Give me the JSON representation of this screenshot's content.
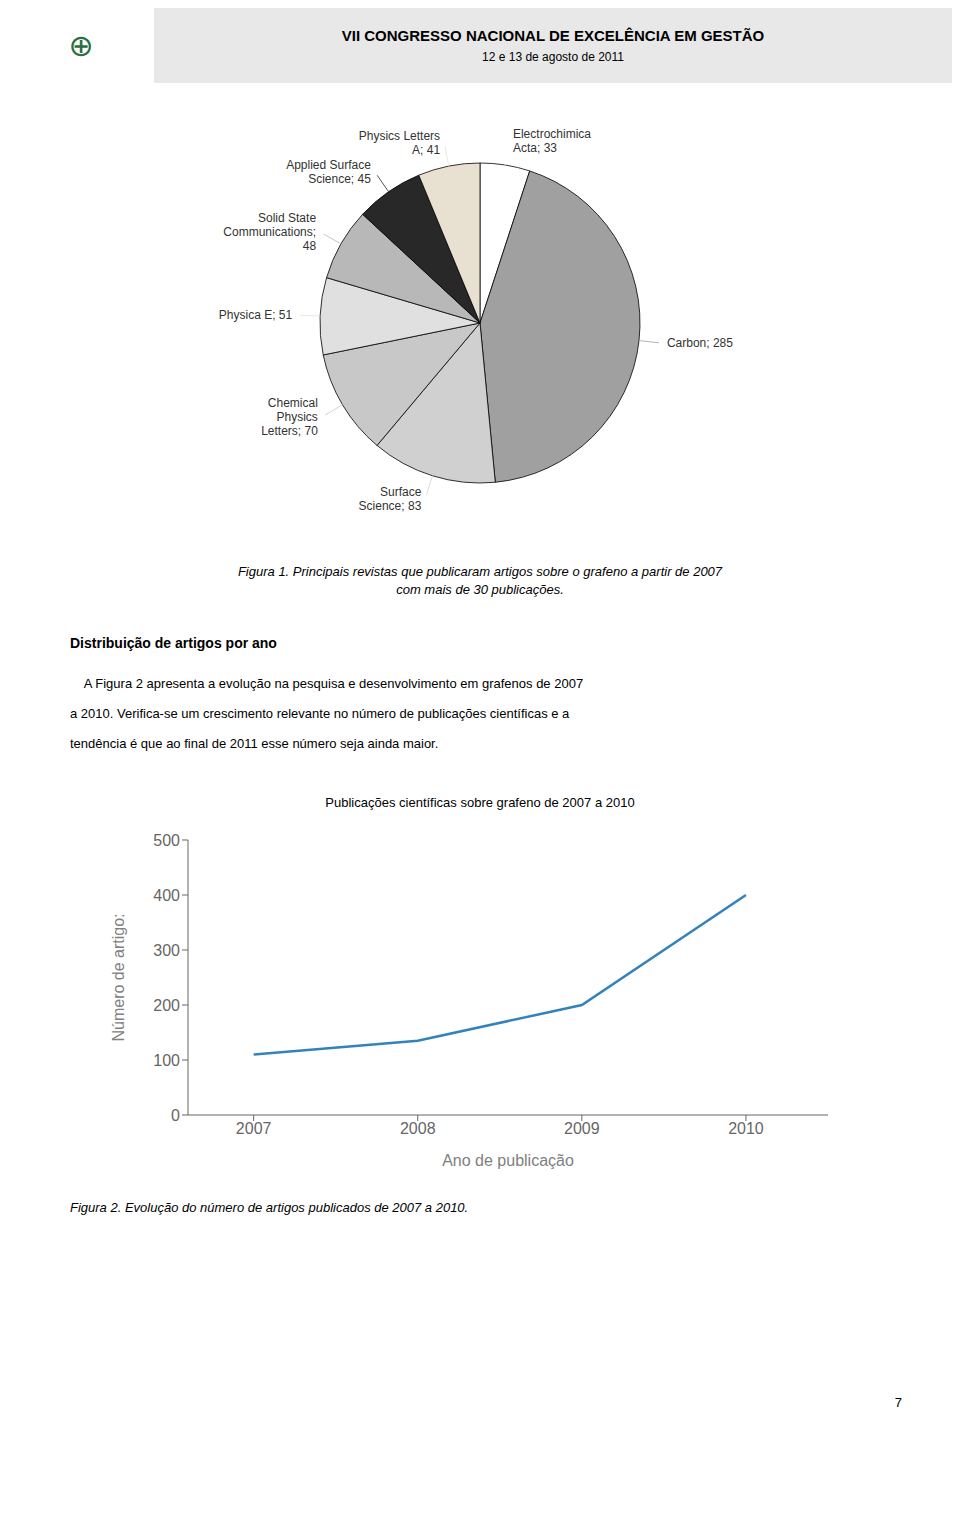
{
  "chart_data": [
    {
      "type": "pie",
      "categories": [
        "Electrochimica\nActa; 33",
        "Carbon; 285",
        "Surface\nScience; 83",
        "Chemical\nPhysics\nLetters; 70",
        "Physica E; 51",
        "Solid State\nCommunications;\n48",
        "Applied Surface\nScience; 45",
        "Physics Letters\nA; 41"
      ],
      "values": [
        33,
        285,
        83,
        70,
        51,
        48,
        45,
        41
      ],
      "colors": [
        "#ffffff",
        "#a0a0a0",
        "#d0d0d0",
        "#c8c8c8",
        "#e0e0e0",
        "#b8b8b8",
        "#282828",
        "#e8e0d0"
      ],
      "annotations": [
        "VII CONGRESSO NACIONAL DE EXCELÊNCIA EM GESTÃO",
        "12 e 13 de agosto de 2011",
        "⊕",
        "Figura 1. Principais revistas que publicaram artigos sobre o grafeno a partir de 2007\ncom mais de 30 publicações."
      ]
    },
    {
      "type": "line",
      "title": "Publicações científicas sobre grafeno de 2007 a 2010",
      "x_label": "Ano de publicação",
      "y_label": "Número de artigo:",
      "x": [
        2007,
        2008,
        2009,
        2010
      ],
      "values": [
        110,
        135,
        200,
        400
      ],
      "xlim": [
        2006.6,
        2010.5
      ],
      "xticks": [
        2007,
        2008,
        2009,
        2010
      ],
      "ylim": [
        0,
        500
      ],
      "yticks": [
        0,
        100,
        200,
        300,
        400,
        500
      ],
      "grid": false,
      "annotations": [
        "Distribuição de artigos por ano",
        "    A Figura 2 apresenta a evolução na pesquisa e desenvolvimento em grafenos de 2007",
        "a 2010. Verifica-se um crescimento relevante no número de publicações científicas e a",
        "tendência é que ao final de 2011 esse número seja ainda maior.",
        "Figura 2. Evolução do número de artigos publicados de 2007 a 2010.",
        "7"
      ]
    }
  ]
}
